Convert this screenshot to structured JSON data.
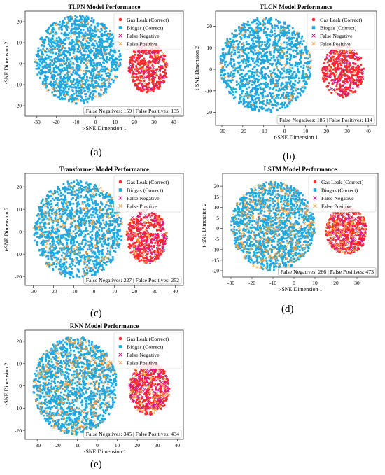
{
  "colors": {
    "gas_leak": "#ff2a2a",
    "biogas": "#1fa8e0",
    "false_negative": "#d4148c",
    "false_positive": "#f5a343"
  },
  "marker_icons": {
    "gas_leak": "circle-marker-icon",
    "biogas": "square-marker-icon",
    "false_negative": "x-marker-icon",
    "false_positive": "x-marker-icon"
  },
  "chart_data": [
    {
      "type": "scatter",
      "panel_label": "(a)",
      "title": "TLPN Model Performance",
      "xlabel": "t-SNE Dimension 1",
      "ylabel": "t-SNE Dimension 2",
      "xlim": [
        -36,
        45
      ],
      "ylim": [
        -25,
        25
      ],
      "xticks": [
        -30,
        -20,
        -10,
        0,
        10,
        20,
        30,
        40
      ],
      "yticks": [
        -20,
        -10,
        0,
        10,
        20
      ],
      "grid": false,
      "legend_position": "top-right",
      "legend": [
        "Gas Leak (Correct)",
        "Biogas (Correct)",
        "False Negative",
        "False Positive"
      ],
      "annotation": "False Negatives: 159 | False Positives: 135",
      "clusters": {
        "biogas": {
          "center": [
            -9,
            2
          ],
          "radius": [
            22,
            21
          ]
        },
        "gas_leak": {
          "center": [
            27,
            -2
          ],
          "radius": [
            10,
            12
          ]
        }
      },
      "false_negatives": 159,
      "false_positives": 135
    },
    {
      "type": "scatter",
      "panel_label": "(b)",
      "title": "TLCN Model Performance",
      "xlabel": "t-SNE Dimension 1",
      "ylabel": "t-SNE Dimension 2",
      "xlim": [
        -33,
        44
      ],
      "ylim": [
        -26,
        27
      ],
      "xticks": [
        -30,
        -20,
        -10,
        0,
        10,
        20,
        30,
        40
      ],
      "yticks": [
        -20,
        -10,
        0,
        10,
        20
      ],
      "grid": false,
      "legend_position": "top-right",
      "legend": [
        "Gas Leak (Correct)",
        "Biogas (Correct)",
        "False Negative",
        "False Positive"
      ],
      "annotation": "False Negatives: 185 | False Positives: 114",
      "clusters": {
        "biogas": {
          "center": [
            -9,
            2
          ],
          "radius": [
            22,
            22
          ]
        },
        "gas_leak": {
          "center": [
            28,
            -1
          ],
          "radius": [
            10,
            12
          ]
        }
      },
      "false_negatives": 185,
      "false_positives": 114
    },
    {
      "type": "scatter",
      "panel_label": "(c)",
      "title": "Transformer Model Performance",
      "xlabel": "",
      "ylabel": "t-SNE Dimension 2",
      "xlim": [
        -34,
        44
      ],
      "ylim": [
        -24,
        26
      ],
      "xticks": [
        -30,
        -20,
        -10,
        0,
        10,
        20,
        30,
        40
      ],
      "yticks": [
        -20,
        -10,
        0,
        10,
        20
      ],
      "grid": false,
      "legend_position": "top-right",
      "legend": [
        "Gas Leak (Correct)",
        "Biogas (Correct)",
        "False Negative",
        "False Positive"
      ],
      "annotation": "False Negatives: 227 | False Positives: 252",
      "clusters": {
        "biogas": {
          "center": [
            -8,
            1
          ],
          "radius": [
            22,
            22
          ]
        },
        "gas_leak": {
          "center": [
            26,
            -2
          ],
          "radius": [
            10,
            12
          ]
        }
      },
      "false_negatives": 227,
      "false_positives": 252
    },
    {
      "type": "scatter",
      "panel_label": "(d)",
      "title": "LSTM Model Performance",
      "xlabel": "t-SNE Dimension 1",
      "ylabel": "t-SNE Dimension 2",
      "xlim": [
        -34,
        40
      ],
      "ylim": [
        -23,
        26
      ],
      "xticks": [
        -30,
        -20,
        -10,
        0,
        10,
        20,
        30
      ],
      "yticks": [
        -20,
        -15,
        -10,
        -5,
        0,
        5,
        10,
        15,
        20
      ],
      "grid": false,
      "legend_position": "top-right",
      "legend": [
        "Gas Leak (Correct)",
        "Biogas (Correct)",
        "False Negative",
        "False Positive"
      ],
      "annotation": "False Negatives: 286 | False Positives: 473",
      "clusters": {
        "biogas": {
          "center": [
            -10,
            1
          ],
          "radius": [
            20,
            21
          ]
        },
        "gas_leak": {
          "center": [
            25,
            -1
          ],
          "radius": [
            10,
            11
          ]
        }
      },
      "false_negatives": 286,
      "false_positives": 473
    },
    {
      "type": "scatter",
      "panel_label": "(e)",
      "title": "RNN Model Performance",
      "xlabel": "t-SNE Dimension 1",
      "ylabel": "t-SNE Dimension 2",
      "xlim": [
        -36,
        43
      ],
      "ylim": [
        -24,
        25
      ],
      "xticks": [
        -30,
        -20,
        -10,
        0,
        10,
        20,
        30,
        40
      ],
      "yticks": [
        -20,
        -10,
        0,
        10,
        20
      ],
      "grid": false,
      "legend_position": "top-right",
      "legend": [
        "Gas Leak (Correct)",
        "Biogas (Correct)",
        "False Negative",
        "False Positive"
      ],
      "annotation": "False Negatives: 345 | False Positives: 434",
      "clusters": {
        "biogas": {
          "center": [
            -11,
            0
          ],
          "radius": [
            21,
            22
          ]
        },
        "gas_leak": {
          "center": [
            26,
            -1
          ],
          "radius": [
            10,
            12
          ]
        }
      },
      "false_negatives": 345,
      "false_positives": 434
    }
  ]
}
